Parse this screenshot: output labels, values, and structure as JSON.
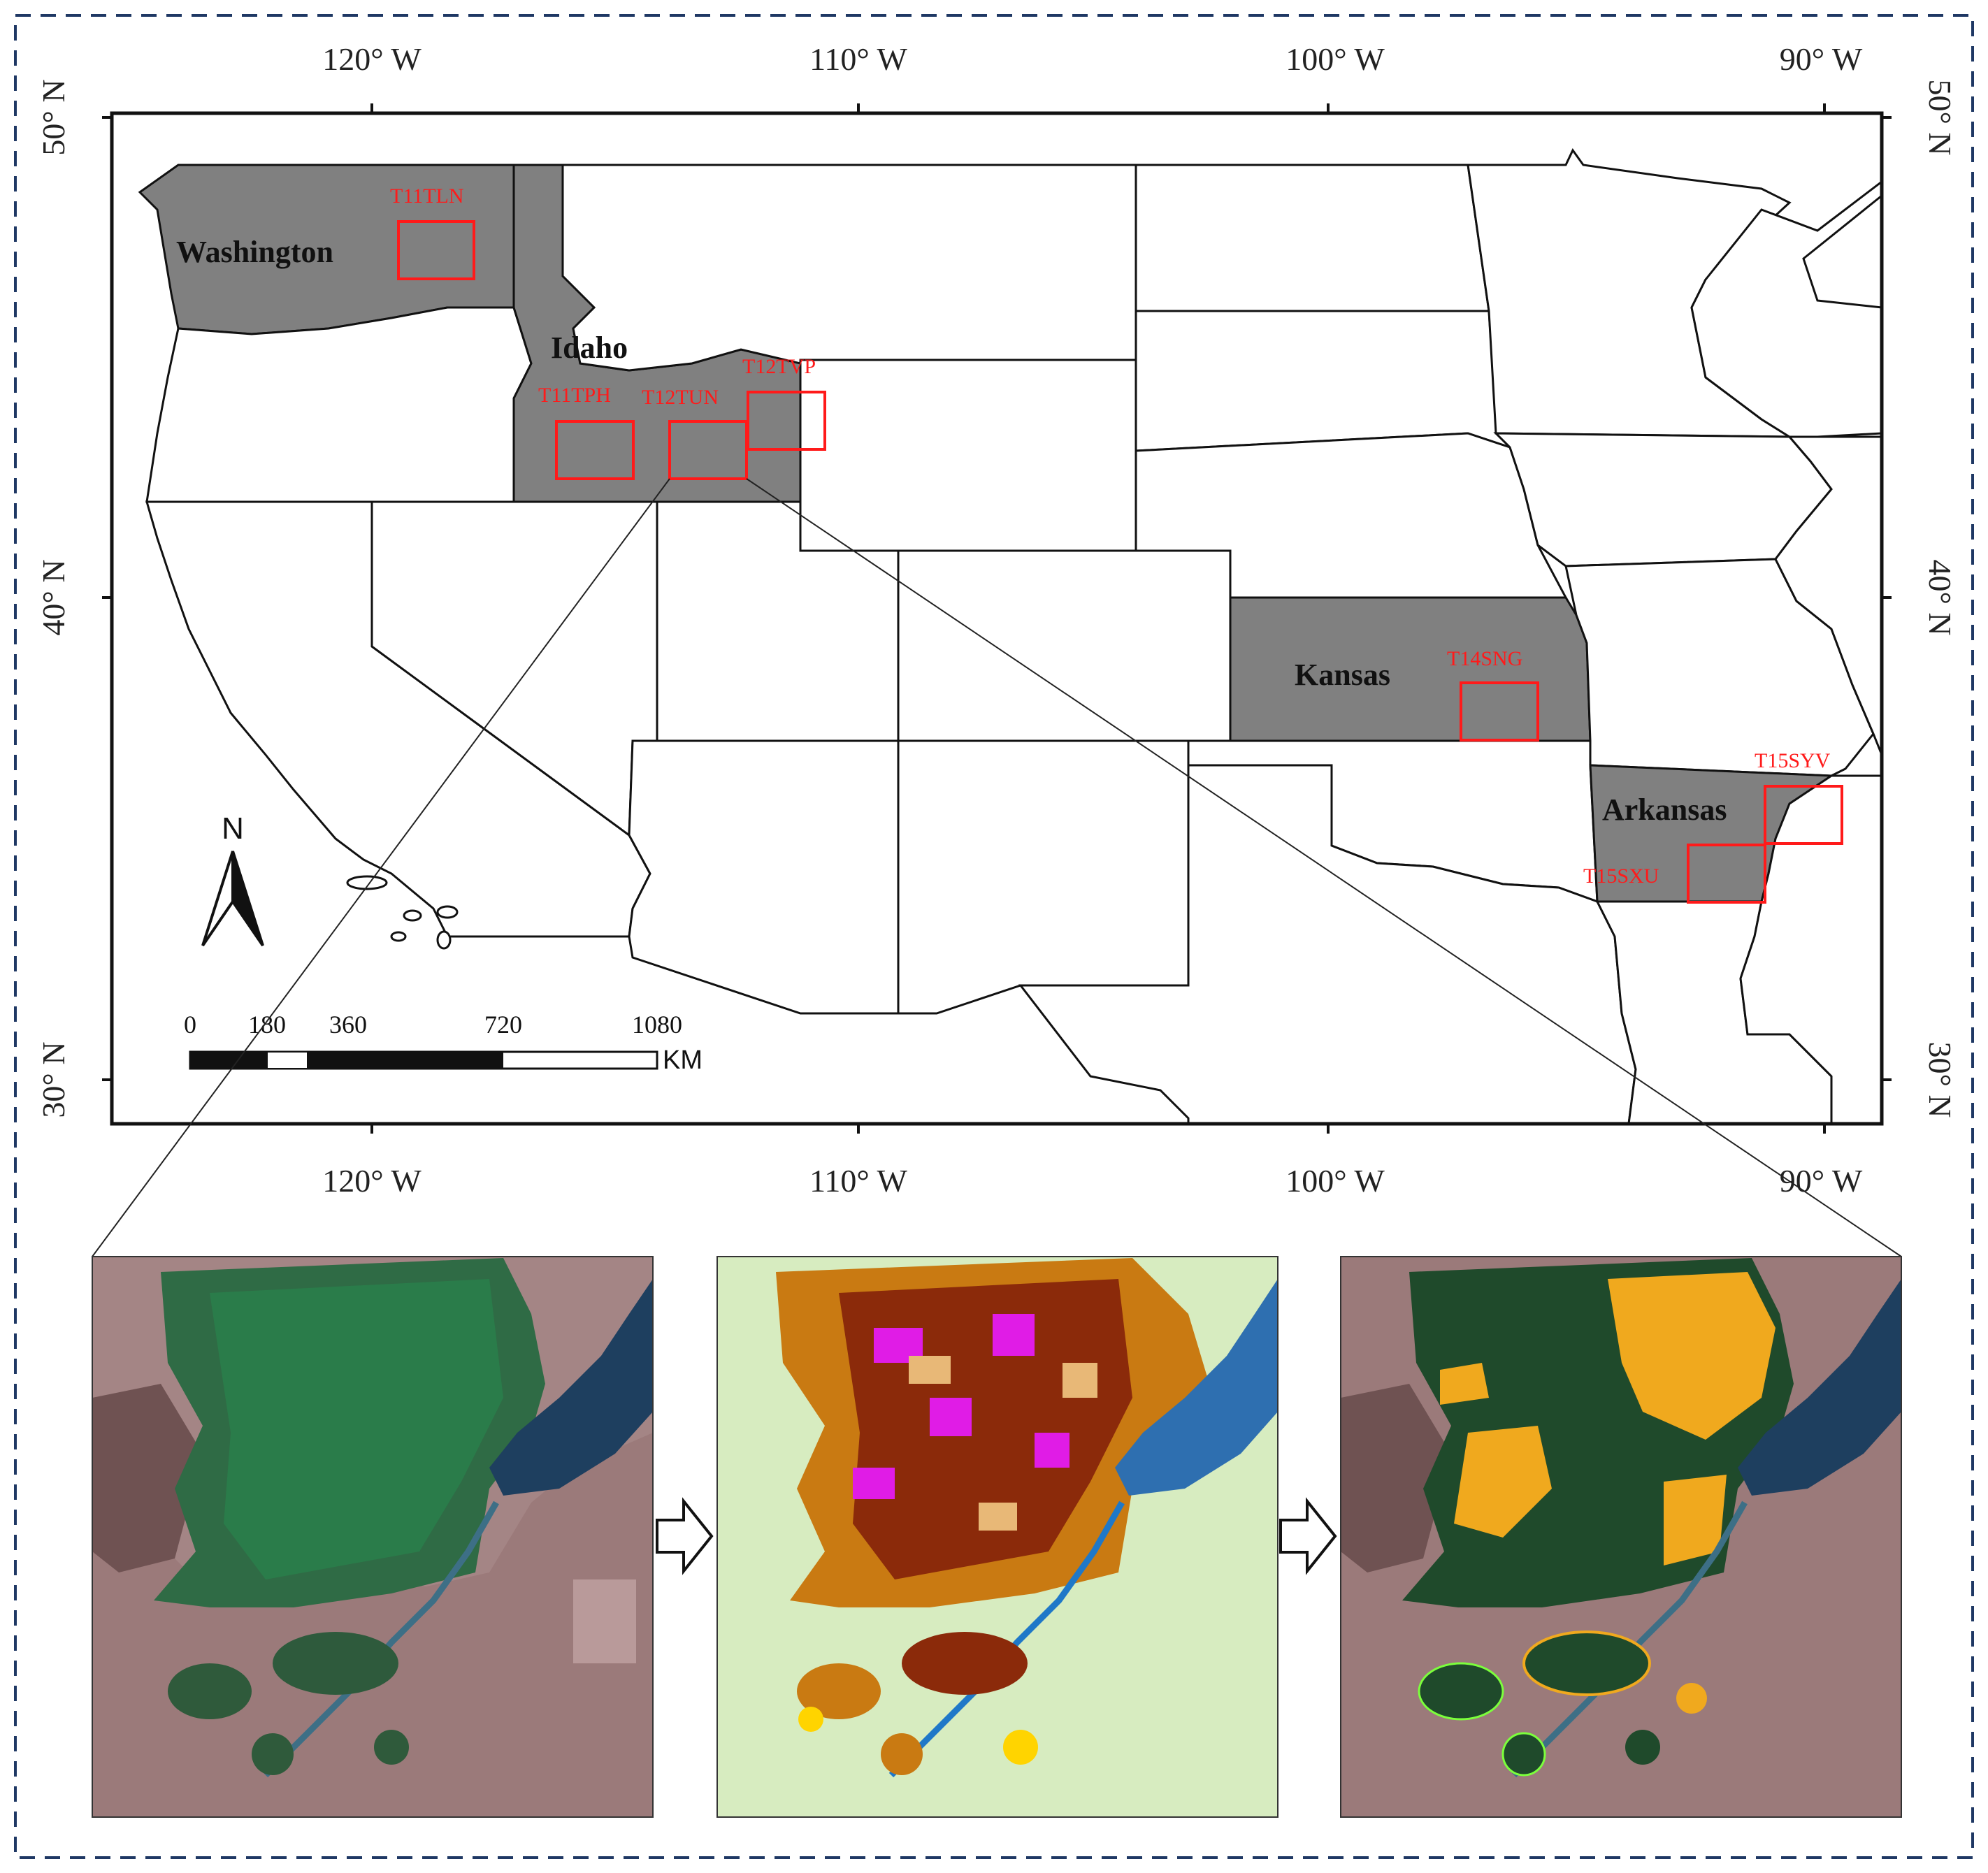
{
  "map": {
    "lon_labels": [
      "120° W",
      "110° W",
      "100° W",
      "90° W"
    ],
    "lat_labels": [
      "50° N",
      "40° N",
      "30° N"
    ],
    "states": [
      "Washington",
      "Idaho",
      "Kansas",
      "Arkansas"
    ],
    "tiles": [
      "T11TLN",
      "T11TPH",
      "T12TUN",
      "T12TVP",
      "T14SNG",
      "T15SYV",
      "T15SXU"
    ],
    "scale_bar": {
      "ticks": [
        "0",
        "180",
        "360",
        "720",
        "1080"
      ],
      "unit": "KM"
    },
    "north_arrow": "N",
    "colors": {
      "highlight_state": "#808080",
      "tile_box": "#ff1a1a",
      "frame_dash": "#1f3864"
    }
  },
  "panels": [
    {
      "name": "satellite-image",
      "icon": "satellite-image"
    },
    {
      "name": "crop-classification",
      "icon": "crop-map"
    },
    {
      "name": "field-boundaries",
      "icon": "field-parcels"
    }
  ]
}
